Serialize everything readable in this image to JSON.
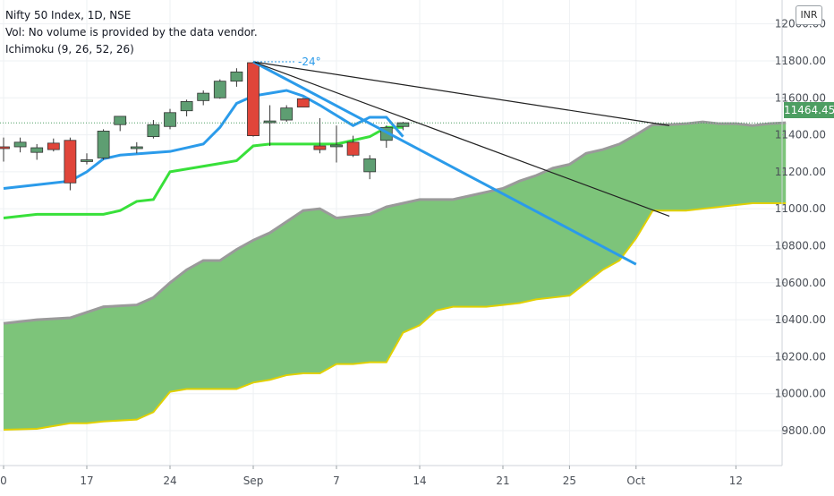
{
  "header": {
    "symbol_line": "Nifty 50 Index, 1D, NSE",
    "volume_line": "Vol: No volume is provided by the data vendor.",
    "indicator_line": "Ichimoku (9, 26, 52, 26)"
  },
  "currency_badge": "INR",
  "last_price_label": "11464.45",
  "angle_label": "-24°",
  "colors": {
    "cloud_fill": "#7dc47a",
    "span_a": "#9a9a9a",
    "span_b": "#e1d000",
    "tenkan": "#2b9bea",
    "kijun": "#38e03a",
    "up_candle": "#5e9e72",
    "down_candle": "#e0453a",
    "trendline_blue": "#2b9bea",
    "trendline_black": "#222222",
    "price_tag": "#4d9e62"
  },
  "chart_data": {
    "type": "candlestick",
    "title": "Nifty 50 Index, 1D, NSE",
    "ylim": [
      9650,
      12100
    ],
    "y_ticks": [
      9800,
      10000,
      10200,
      10400,
      10600,
      10800,
      11000,
      11200,
      11400,
      11600,
      11800,
      12000
    ],
    "y_tick_labels": [
      "9800.00",
      "10000.00",
      "10200.00",
      "10400.00",
      "10600.00",
      "10800.00",
      "11000.00",
      "11200.00",
      "11400.00",
      "11600.00",
      "11800.00",
      "12000.00"
    ],
    "x_ticks": [
      "0",
      "17",
      "24",
      "Sep",
      "7",
      "14",
      "21",
      "25",
      "Oct",
      "12"
    ],
    "x_tick_positions": [
      0,
      5,
      10,
      15,
      20,
      25,
      30,
      34,
      38,
      44
    ],
    "grid": true,
    "candles": [
      {
        "i": 0,
        "o": 11335,
        "h": 11385,
        "l": 11255,
        "c": 11330
      },
      {
        "i": 1,
        "o": 11335,
        "h": 11385,
        "l": 11305,
        "c": 11360
      },
      {
        "i": 2,
        "o": 11305,
        "h": 11350,
        "l": 11265,
        "c": 11330
      },
      {
        "i": 3,
        "o": 11355,
        "h": 11380,
        "l": 11310,
        "c": 11320
      },
      {
        "i": 4,
        "o": 11370,
        "h": 11385,
        "l": 11100,
        "c": 11140
      },
      {
        "i": 5,
        "o": 11260,
        "h": 11300,
        "l": 11240,
        "c": 11265
      },
      {
        "i": 6,
        "o": 11275,
        "h": 11430,
        "l": 11265,
        "c": 11420
      },
      {
        "i": 7,
        "o": 11455,
        "h": 11500,
        "l": 11420,
        "c": 11500
      },
      {
        "i": 8,
        "o": 11330,
        "h": 11360,
        "l": 11300,
        "c": 11335
      },
      {
        "i": 9,
        "o": 11390,
        "h": 11480,
        "l": 11380,
        "c": 11455
      },
      {
        "i": 10,
        "o": 11445,
        "h": 11540,
        "l": 11430,
        "c": 11520
      },
      {
        "i": 11,
        "o": 11530,
        "h": 11590,
        "l": 11500,
        "c": 11580
      },
      {
        "i": 12,
        "o": 11585,
        "h": 11640,
        "l": 11560,
        "c": 11625
      },
      {
        "i": 13,
        "o": 11600,
        "h": 11700,
        "l": 11595,
        "c": 11690
      },
      {
        "i": 14,
        "o": 11690,
        "h": 11760,
        "l": 11660,
        "c": 11740
      },
      {
        "i": 15,
        "o": 11790,
        "h": 11795,
        "l": 11390,
        "c": 11395
      },
      {
        "i": 16,
        "o": 11470,
        "h": 11560,
        "l": 11340,
        "c": 11475
      },
      {
        "i": 17,
        "o": 11480,
        "h": 11560,
        "l": 11470,
        "c": 11545
      },
      {
        "i": 18,
        "o": 11595,
        "h": 11600,
        "l": 11550,
        "c": 11550
      },
      {
        "i": 19,
        "o": 11340,
        "h": 11490,
        "l": 11300,
        "c": 11320
      },
      {
        "i": 20,
        "o": 11345,
        "h": 11450,
        "l": 11250,
        "c": 11345
      },
      {
        "i": 21,
        "o": 11360,
        "h": 11395,
        "l": 11280,
        "c": 11290
      },
      {
        "i": 22,
        "o": 11200,
        "h": 11290,
        "l": 11160,
        "c": 11270
      },
      {
        "i": 23,
        "o": 11370,
        "h": 11450,
        "l": 11330,
        "c": 11440
      },
      {
        "i": 24,
        "o": 11445,
        "h": 11470,
        "l": 11425,
        "c": 11465
      }
    ],
    "tenkan": [
      [
        0,
        11110
      ],
      [
        2,
        11130
      ],
      [
        4,
        11150
      ],
      [
        5,
        11200
      ],
      [
        6,
        11270
      ],
      [
        7,
        11290
      ],
      [
        10,
        11310
      ],
      [
        11,
        11330
      ],
      [
        12,
        11350
      ],
      [
        13,
        11440
      ],
      [
        14,
        11570
      ],
      [
        15,
        11610
      ],
      [
        16,
        11625
      ],
      [
        17,
        11640
      ],
      [
        18,
        11610
      ],
      [
        19,
        11560
      ],
      [
        20,
        11505
      ],
      [
        21,
        11450
      ],
      [
        22,
        11495
      ],
      [
        23,
        11495
      ],
      [
        24,
        11390
      ]
    ],
    "kijun": [
      [
        0,
        10950
      ],
      [
        2,
        10970
      ],
      [
        6,
        10970
      ],
      [
        7,
        10990
      ],
      [
        8,
        11040
      ],
      [
        9,
        11050
      ],
      [
        10,
        11200
      ],
      [
        14,
        11260
      ],
      [
        15,
        11340
      ],
      [
        16,
        11350
      ],
      [
        20,
        11350
      ],
      [
        21,
        11370
      ],
      [
        22,
        11390
      ],
      [
        23,
        11440
      ],
      [
        24,
        11440
      ]
    ],
    "span_a": [
      [
        0,
        10380
      ],
      [
        2,
        10400
      ],
      [
        4,
        10410
      ],
      [
        5,
        10440
      ],
      [
        6,
        10470
      ],
      [
        8,
        10480
      ],
      [
        9,
        10520
      ],
      [
        10,
        10600
      ],
      [
        11,
        10670
      ],
      [
        12,
        10720
      ],
      [
        13,
        10720
      ],
      [
        14,
        10780
      ],
      [
        15,
        10830
      ],
      [
        16,
        10870
      ],
      [
        17,
        10930
      ],
      [
        18,
        10990
      ],
      [
        19,
        11000
      ],
      [
        20,
        10950
      ],
      [
        21,
        10960
      ],
      [
        22,
        10970
      ],
      [
        23,
        11010
      ],
      [
        24,
        11030
      ],
      [
        25,
        11050
      ],
      [
        26,
        11050
      ],
      [
        27,
        11050
      ],
      [
        28,
        11070
      ],
      [
        29,
        11090
      ],
      [
        30,
        11110
      ],
      [
        31,
        11150
      ],
      [
        32,
        11180
      ],
      [
        33,
        11220
      ],
      [
        34,
        11240
      ],
      [
        35,
        11300
      ],
      [
        36,
        11320
      ],
      [
        37,
        11350
      ],
      [
        38,
        11400
      ],
      [
        39,
        11455
      ],
      [
        40,
        11455
      ],
      [
        41,
        11460
      ],
      [
        42,
        11470
      ],
      [
        43,
        11460
      ],
      [
        44,
        11460
      ],
      [
        45,
        11450
      ],
      [
        46,
        11460
      ],
      [
        47,
        11465
      ]
    ],
    "span_b": [
      [
        0,
        9805
      ],
      [
        2,
        9810
      ],
      [
        4,
        9840
      ],
      [
        5,
        9840
      ],
      [
        6,
        9850
      ],
      [
        8,
        9860
      ],
      [
        9,
        9900
      ],
      [
        10,
        10010
      ],
      [
        11,
        10025
      ],
      [
        12,
        10025
      ],
      [
        13,
        10025
      ],
      [
        14,
        10025
      ],
      [
        15,
        10060
      ],
      [
        16,
        10075
      ],
      [
        17,
        10100
      ],
      [
        18,
        10110
      ],
      [
        19,
        10110
      ],
      [
        20,
        10160
      ],
      [
        21,
        10160
      ],
      [
        22,
        10170
      ],
      [
        23,
        10170
      ],
      [
        24,
        10330
      ],
      [
        25,
        10370
      ],
      [
        26,
        10450
      ],
      [
        27,
        10470
      ],
      [
        28,
        10470
      ],
      [
        29,
        10470
      ],
      [
        30,
        10480
      ],
      [
        31,
        10490
      ],
      [
        32,
        10510
      ],
      [
        33,
        10520
      ],
      [
        34,
        10530
      ],
      [
        35,
        10600
      ],
      [
        36,
        10670
      ],
      [
        37,
        10720
      ],
      [
        38,
        10840
      ],
      [
        39,
        10990
      ],
      [
        40,
        10990
      ],
      [
        41,
        10990
      ],
      [
        42,
        11000
      ],
      [
        43,
        11010
      ],
      [
        44,
        11020
      ],
      [
        45,
        11030
      ],
      [
        46,
        11030
      ],
      [
        47,
        11030
      ]
    ],
    "trendlines": [
      {
        "color": "blue",
        "from": [
          15,
          11795
        ],
        "to": [
          38,
          10700
        ]
      },
      {
        "color": "black",
        "from": [
          15,
          11795
        ],
        "to": [
          40,
          11450
        ]
      },
      {
        "color": "black",
        "from": [
          15,
          11795
        ],
        "to": [
          40,
          10960
        ]
      }
    ],
    "last_price": 11464.45
  }
}
